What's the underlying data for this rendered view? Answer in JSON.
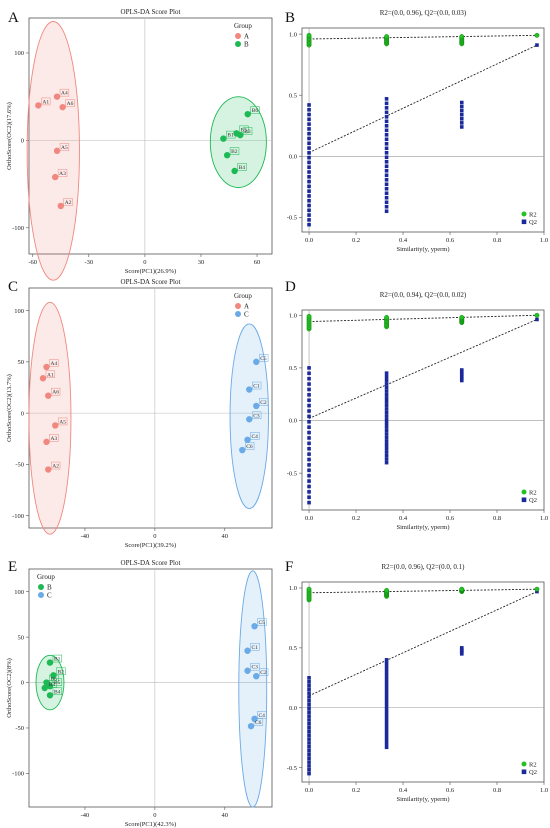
{
  "colors": {
    "A": "#f08880",
    "B": "#1db954",
    "C": "#6aaae6",
    "R2": "#22c322",
    "Q2": "#1a2a9c"
  },
  "chart_data": [
    {
      "panel": "A",
      "type": "scatter",
      "title": "OPLS-DA Score Plot",
      "xlabel": "Score(PC1)(26.9%)",
      "ylabel": "OrthoScore(OC2)(17.6%)",
      "xlim": [
        -62,
        68
      ],
      "ylim": [
        -130,
        140
      ],
      "xticks": [
        "-60",
        "-30",
        "0",
        "30",
        "60"
      ],
      "yticks": [
        "100",
        "0",
        "-100"
      ],
      "legend": {
        "title": "Group",
        "entries": [
          "A",
          "B"
        ],
        "position": "top-right"
      },
      "groups": [
        {
          "name": "A",
          "color_key": "A",
          "points": [
            {
              "label": "A4",
              "x": -47,
              "y": 50
            },
            {
              "label": "A1",
              "x": -57,
              "y": 40
            },
            {
              "label": "A6",
              "x": -44,
              "y": 38
            },
            {
              "label": "A5",
              "x": -47,
              "y": -12
            },
            {
              "label": "A3",
              "x": -48,
              "y": -42
            },
            {
              "label": "A2",
              "x": -45,
              "y": -75
            }
          ],
          "ellipse": {
            "cx": -49,
            "cy": -12,
            "rx": 14,
            "ry": 148
          }
        },
        {
          "name": "B",
          "color_key": "B",
          "points": [
            {
              "label": "B6",
              "x": 55,
              "y": 30
            },
            {
              "label": "B5",
              "x": 49,
              "y": 8
            },
            {
              "label": "B1",
              "x": 42,
              "y": 2
            },
            {
              "label": "B3",
              "x": 51,
              "y": 6
            },
            {
              "label": "B2",
              "x": 44,
              "y": -17
            },
            {
              "label": "B4",
              "x": 48,
              "y": -35
            }
          ],
          "ellipse": {
            "cx": 50,
            "cy": -2,
            "rx": 15,
            "ry": 52
          }
        }
      ]
    },
    {
      "panel": "B",
      "type": "scatter",
      "title": "R2=(0.0, 0.96), Q2=(0.0, 0.03)",
      "xlabel": "Similarity(y, yperm)",
      "ylabel": "",
      "xlim": [
        -0.03,
        1.0
      ],
      "ylim": [
        -0.62,
        1.05
      ],
      "xticks": [
        "0.0",
        "0.2",
        "0.4",
        "0.6",
        "0.8",
        "1.0"
      ],
      "yticks": [
        "1.0",
        "0.5",
        "0.0",
        "-0.5"
      ],
      "legend": {
        "entries": [
          "R2",
          "Q2"
        ],
        "position": "bottom-right"
      },
      "r2_line": {
        "intercept": 0.96,
        "end": 0.99
      },
      "q2_line": {
        "intercept": 0.03,
        "end": 0.91
      },
      "r2_points": {
        "0": [
          0.91,
          0.99
        ],
        "0.33": [
          0.92,
          0.98
        ],
        "0.65": [
          0.92,
          0.98
        ],
        "0.97": [
          0.99,
          0.99
        ]
      },
      "q2_points": {
        "0": [
          -0.56,
          0.42
        ],
        "0.33": [
          -0.45,
          0.47
        ],
        "0.65": [
          0.24,
          0.44
        ],
        "0.97": [
          0.91,
          0.91
        ]
      }
    },
    {
      "panel": "C",
      "type": "scatter",
      "title": "OPLS-DA Score Plot",
      "xlabel": "Score(PC1)(39.2%)",
      "ylabel": "OrthoScore(OC2)(13.7%)",
      "xlim": [
        -72,
        67
      ],
      "ylim": [
        -112,
        122
      ],
      "xticks": [
        "-40",
        "0",
        "40"
      ],
      "yticks": [
        "100",
        "50",
        "0",
        "-50",
        "-100"
      ],
      "legend": {
        "title": "Group",
        "entries": [
          "A",
          "C"
        ],
        "position": "top-right"
      },
      "groups": [
        {
          "name": "A",
          "color_key": "A",
          "points": [
            {
              "label": "A4",
              "x": -62,
              "y": 45
            },
            {
              "label": "A1",
              "x": -64,
              "y": 34
            },
            {
              "label": "A6",
              "x": -61,
              "y": 17
            },
            {
              "label": "A5",
              "x": -57,
              "y": -12
            },
            {
              "label": "A3",
              "x": -62,
              "y": -28
            },
            {
              "label": "A2",
              "x": -61,
              "y": -55
            }
          ],
          "ellipse": {
            "cx": -60,
            "cy": -5,
            "rx": 12,
            "ry": 113
          }
        },
        {
          "name": "C",
          "color_key": "C",
          "points": [
            {
              "label": "C5",
              "x": 58,
              "y": 50
            },
            {
              "label": "C1",
              "x": 54,
              "y": 23
            },
            {
              "label": "C2",
              "x": 58,
              "y": 7
            },
            {
              "label": "C3",
              "x": 54,
              "y": -6
            },
            {
              "label": "C4",
              "x": 53,
              "y": -26
            },
            {
              "label": "C6",
              "x": 50,
              "y": -36
            }
          ],
          "ellipse": {
            "cx": 54,
            "cy": -3,
            "rx": 11,
            "ry": 90
          }
        }
      ]
    },
    {
      "panel": "D",
      "type": "scatter",
      "title": "R2=(0.0, 0.94), Q2=(0.0, 0.02)",
      "xlabel": "Similarity(y, yperm)",
      "ylabel": "",
      "xlim": [
        -0.03,
        1.0
      ],
      "ylim": [
        -0.85,
        1.05
      ],
      "xticks": [
        "0.0",
        "0.2",
        "0.4",
        "0.6",
        "0.8",
        "1.0"
      ],
      "yticks": [
        "1.0",
        "0.5",
        "0.0",
        "-0.5"
      ],
      "legend": {
        "entries": [
          "R2",
          "Q2"
        ],
        "position": "bottom-right"
      },
      "r2_line": {
        "intercept": 0.94,
        "end": 1.0
      },
      "q2_line": {
        "intercept": 0.02,
        "end": 0.96
      },
      "r2_points": {
        "0": [
          0.87,
          0.99
        ],
        "0.33": [
          0.89,
          0.98
        ],
        "0.65": [
          0.93,
          0.98
        ],
        "0.97": [
          1.0,
          1.0
        ]
      },
      "q2_points": {
        "0": [
          -0.78,
          0.5
        ],
        "0.33": [
          -0.4,
          0.45
        ],
        "0.65": [
          0.38,
          0.48
        ],
        "0.97": [
          0.96,
          0.96
        ]
      }
    },
    {
      "panel": "E",
      "type": "scatter",
      "title": "OPLS-DA Score Plot",
      "xlabel": "Score(PC1)(42.3%)",
      "ylabel": "OrthoScore(OC2)(8%)",
      "xlim": [
        -72,
        67
      ],
      "ylim": [
        -137,
        125
      ],
      "xticks": [
        "-40",
        "0",
        "40"
      ],
      "yticks": [
        "100",
        "50",
        "0",
        "-50",
        "-100"
      ],
      "legend": {
        "title": "Group",
        "entries": [
          "B",
          "C"
        ],
        "position": "top-left"
      },
      "groups": [
        {
          "name": "B",
          "color_key": "B",
          "points": [
            {
              "label": "B1",
              "x": -60,
              "y": 22
            },
            {
              "label": "B2",
              "x": -58,
              "y": 8
            },
            {
              "label": "B6",
              "x": -62,
              "y": 0
            },
            {
              "label": "B5",
              "x": -60,
              "y": -4
            },
            {
              "label": "B3",
              "x": -63,
              "y": -6
            },
            {
              "label": "B4",
              "x": -60,
              "y": -14
            }
          ],
          "ellipse": {
            "cx": -60,
            "cy": 0,
            "rx": 8,
            "ry": 30
          }
        },
        {
          "name": "C",
          "color_key": "C",
          "points": [
            {
              "label": "C5",
              "x": 57,
              "y": 62
            },
            {
              "label": "C1",
              "x": 53,
              "y": 35
            },
            {
              "label": "C3",
              "x": 53,
              "y": 13
            },
            {
              "label": "C2",
              "x": 58,
              "y": 7
            },
            {
              "label": "C4",
              "x": 57,
              "y": -40
            },
            {
              "label": "C6",
              "x": 55,
              "y": -48
            }
          ],
          "ellipse": {
            "cx": 56,
            "cy": -7,
            "rx": 8,
            "ry": 130
          }
        }
      ]
    },
    {
      "panel": "F",
      "type": "scatter",
      "title": "R2=(0.0, 0.96), Q2=(0.0, 0.1)",
      "xlabel": "Similarity(y, yperm)",
      "ylabel": "",
      "xlim": [
        -0.03,
        1.0
      ],
      "ylim": [
        -0.62,
        1.05
      ],
      "xticks": [
        "0.0",
        "0.2",
        "0.4",
        "0.6",
        "0.8",
        "1.0"
      ],
      "yticks": [
        "1.0",
        "0.5",
        "0.0",
        "-0.5"
      ],
      "legend": {
        "entries": [
          "R2",
          "Q2"
        ],
        "position": "bottom-right"
      },
      "r2_line": {
        "intercept": 0.96,
        "end": 0.99
      },
      "q2_line": {
        "intercept": 0.1,
        "end": 0.97
      },
      "r2_points": {
        "0": [
          0.9,
          0.99
        ],
        "0.33": [
          0.93,
          0.98
        ],
        "0.65": [
          0.97,
          0.99
        ],
        "0.97": [
          0.99,
          0.99
        ]
      },
      "q2_points": {
        "0": [
          -0.55,
          0.25
        ],
        "0.33": [
          -0.33,
          0.4
        ],
        "0.65": [
          0.45,
          0.5
        ],
        "0.97": [
          0.97,
          0.97
        ]
      }
    }
  ],
  "panel_letters": [
    "A",
    "B",
    "C",
    "D",
    "E",
    "F"
  ]
}
